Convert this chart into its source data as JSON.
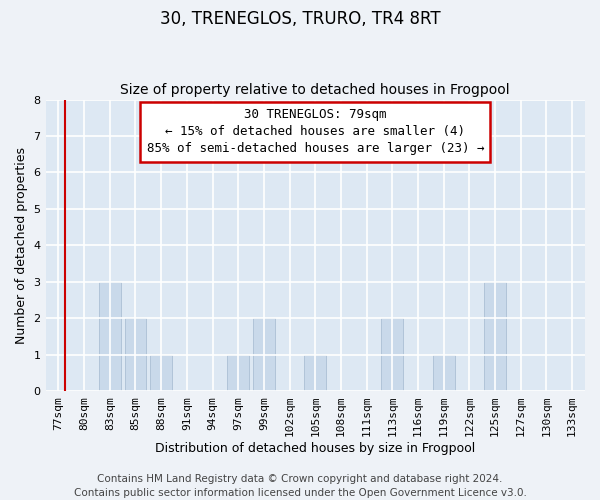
{
  "title": "30, TRENEGLOS, TRURO, TR4 8RT",
  "subtitle": "Size of property relative to detached houses in Frogpool",
  "xlabel": "Distribution of detached houses by size in Frogpool",
  "ylabel": "Number of detached properties",
  "categories": [
    "77sqm",
    "80sqm",
    "83sqm",
    "85sqm",
    "88sqm",
    "91sqm",
    "94sqm",
    "97sqm",
    "99sqm",
    "102sqm",
    "105sqm",
    "108sqm",
    "111sqm",
    "113sqm",
    "116sqm",
    "119sqm",
    "122sqm",
    "125sqm",
    "127sqm",
    "130sqm",
    "133sqm"
  ],
  "values": [
    0,
    0,
    3,
    2,
    1,
    0,
    0,
    1,
    2,
    0,
    1,
    0,
    0,
    2,
    0,
    1,
    0,
    3,
    0,
    0,
    0
  ],
  "bar_color": "#c9d9ea",
  "bar_edge_color": "#b0c4d8",
  "ylim": [
    0,
    8
  ],
  "yticks": [
    0,
    1,
    2,
    3,
    4,
    5,
    6,
    7,
    8
  ],
  "property_label": "30 TRENEGLOS: 79sqm",
  "pct_smaller": 15,
  "n_smaller": 4,
  "pct_larger_semi": 85,
  "n_larger_semi": 23,
  "annotation_line_color": "#cc0000",
  "annotation_box_color": "#cc0000",
  "vline_position": 0.27,
  "footer_text": "Contains HM Land Registry data © Crown copyright and database right 2024.\nContains public sector information licensed under the Open Government Licence v3.0.",
  "bg_color": "#eef2f7",
  "plot_bg_color": "#dde8f3",
  "grid_color": "#ffffff",
  "title_fontsize": 12,
  "subtitle_fontsize": 10,
  "axis_label_fontsize": 9,
  "tick_fontsize": 8,
  "annotation_fontsize": 9,
  "footer_fontsize": 7.5
}
